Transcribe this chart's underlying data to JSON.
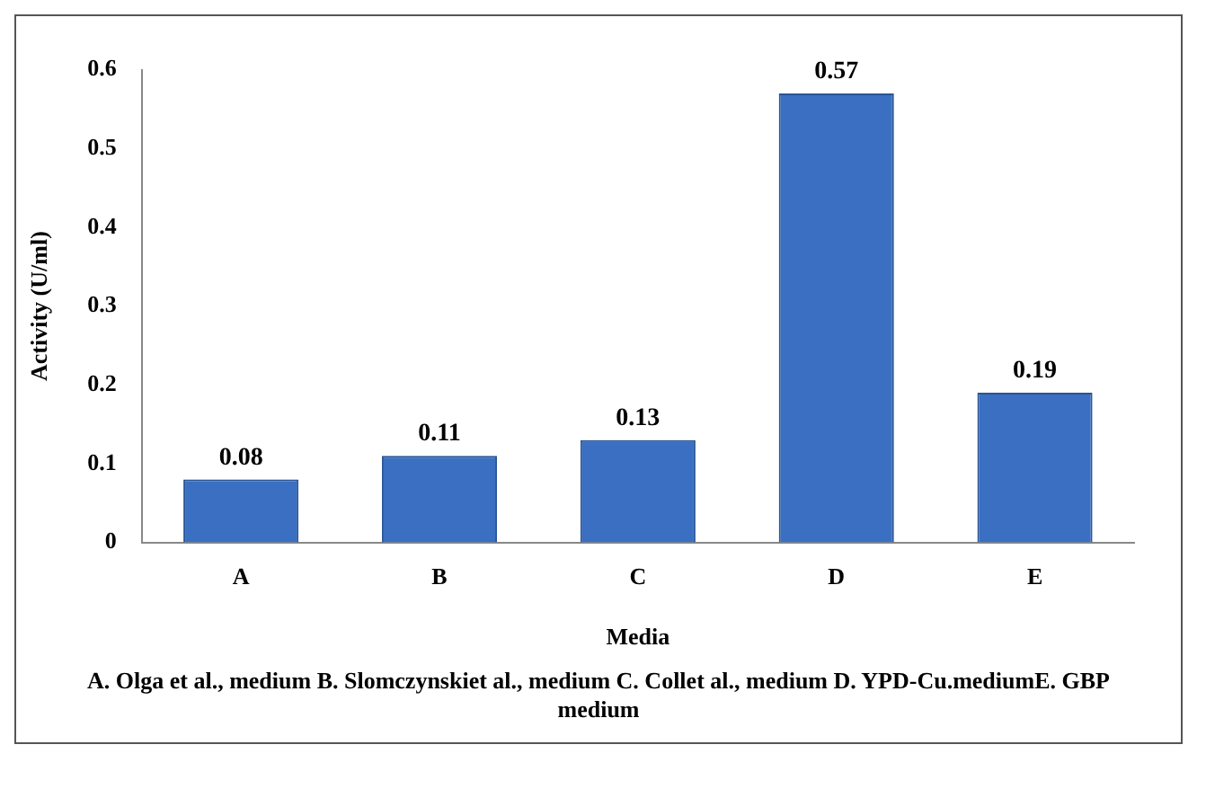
{
  "chart_data": {
    "type": "bar",
    "xlabel": "Media",
    "ylabel": "Activity (U/ml)",
    "categories": [
      "A",
      "B",
      "C",
      "D",
      "E"
    ],
    "values": [
      0.08,
      0.11,
      0.13,
      0.57,
      0.19
    ],
    "color": "#3a6fc1",
    "ylim": [
      0,
      0.6
    ],
    "yticks": [
      0,
      0.1,
      0.2,
      0.3,
      0.4,
      0.5,
      0.6
    ],
    "grid": false,
    "legend": false,
    "data_labels": true,
    "annotations": [
      "A. Olga et al., medium B. Slomczynskiet al., medium C. Collet al., medium D. YPD-Cu.mediumE. GBP medium"
    ]
  }
}
